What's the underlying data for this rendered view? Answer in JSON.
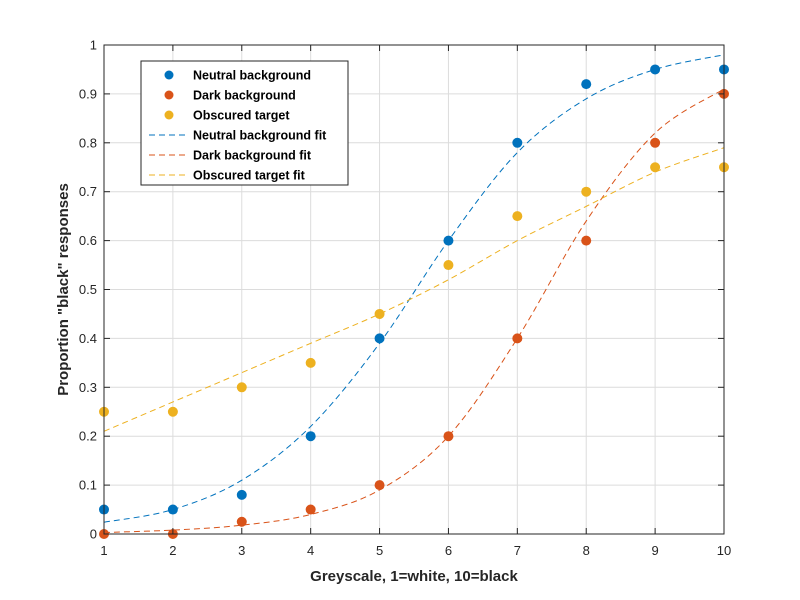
{
  "chart_data": {
    "type": "scatter",
    "title": "",
    "xlabel": "Greyscale, 1=white, 10=black",
    "ylabel": "Proportion \"black\" responses",
    "xlim": [
      1,
      10
    ],
    "ylim": [
      0,
      1
    ],
    "x_ticks": [
      "1",
      "2",
      "3",
      "4",
      "5",
      "6",
      "7",
      "8",
      "9",
      "10"
    ],
    "y_ticks": [
      "0",
      "0.1",
      "0.2",
      "0.3",
      "0.4",
      "0.5",
      "0.6",
      "0.7",
      "0.8",
      "0.9",
      "1"
    ],
    "grid": true,
    "legend_position": "top-left",
    "x": [
      1,
      2,
      3,
      4,
      5,
      6,
      7,
      8,
      9,
      10
    ],
    "series": [
      {
        "name": "Neutral background",
        "kind": "points",
        "color": "#0072BD",
        "values": [
          0.05,
          0.05,
          0.08,
          0.2,
          0.4,
          0.6,
          0.8,
          0.92,
          0.95,
          0.95
        ]
      },
      {
        "name": "Dark background",
        "kind": "points",
        "color": "#D95319",
        "values": [
          0.0,
          0.0,
          0.025,
          0.05,
          0.1,
          0.2,
          0.4,
          0.6,
          0.8,
          0.9
        ]
      },
      {
        "name": "Obscured target",
        "kind": "points",
        "color": "#EDB120",
        "values": [
          0.25,
          0.25,
          0.3,
          0.35,
          0.45,
          0.55,
          0.65,
          0.7,
          0.75,
          0.75
        ]
      },
      {
        "name": "Neutral background fit",
        "kind": "dashed-line",
        "color": "#0072BD",
        "values": [
          0.024,
          0.05,
          0.11,
          0.22,
          0.39,
          0.6,
          0.78,
          0.89,
          0.95,
          0.98
        ]
      },
      {
        "name": "Dark background fit",
        "kind": "dashed-line",
        "color": "#D95319",
        "values": [
          0.003,
          0.008,
          0.018,
          0.04,
          0.09,
          0.2,
          0.4,
          0.64,
          0.82,
          0.91
        ]
      },
      {
        "name": "Obscured target fit",
        "kind": "dashed-line",
        "color": "#EDB120",
        "values": [
          0.21,
          0.27,
          0.33,
          0.39,
          0.45,
          0.52,
          0.6,
          0.67,
          0.74,
          0.79
        ]
      }
    ]
  }
}
